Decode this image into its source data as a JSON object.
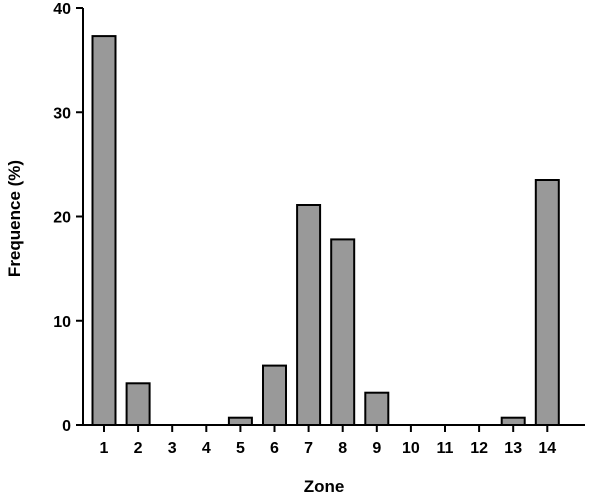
{
  "chart_data": {
    "type": "bar",
    "categories": [
      "1",
      "2",
      "3",
      "4",
      "5",
      "6",
      "7",
      "8",
      "9",
      "10",
      "11",
      "12",
      "13",
      "14"
    ],
    "values": [
      37.3,
      4.0,
      0,
      0,
      0.7,
      5.7,
      21.1,
      17.8,
      3.1,
      0,
      0,
      0,
      0.7,
      23.5
    ],
    "xlabel": "Zone",
    "ylabel": "Frequence (%)",
    "ylim": [
      0,
      40
    ],
    "yticks": [
      "0",
      "10",
      "20",
      "30",
      "40"
    ],
    "grid": false,
    "legend": "none",
    "bar_color": "#999999",
    "bar_edge_color": "#000000"
  }
}
